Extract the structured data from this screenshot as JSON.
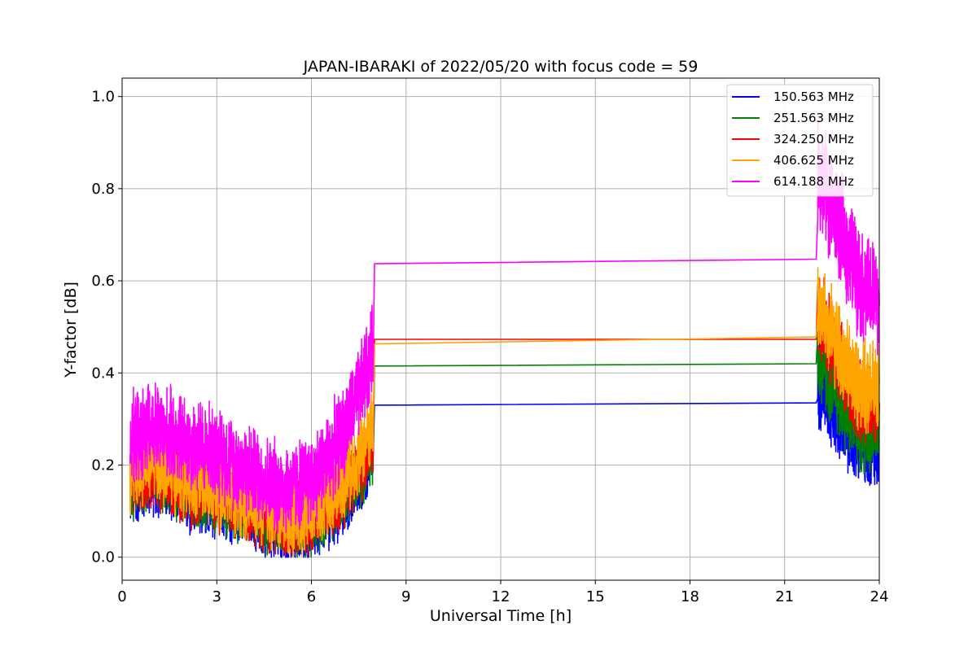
{
  "chart_data": {
    "type": "line",
    "title": "JAPAN-IBARAKI of 2022/05/20 with focus code = 59",
    "xlabel": "Universal Time [h]",
    "ylabel": "Y-factor [dB]",
    "xlim": [
      0,
      24
    ],
    "ylim": [
      -0.05,
      1.04
    ],
    "xticks": [
      "0",
      "3",
      "6",
      "9",
      "12",
      "15",
      "18",
      "21",
      "24"
    ],
    "yticks": [
      "0.0",
      "0.2",
      "0.4",
      "0.6",
      "0.8",
      "1.0"
    ],
    "grid": true,
    "legend_position": "top-right",
    "series": [
      {
        "name": "150.563 MHz",
        "color": "#0000ff",
        "x": [
          0.25,
          1.0,
          2.0,
          3.0,
          4.0,
          4.7,
          5.3,
          6.0,
          6.5,
          7.0,
          7.5,
          7.95,
          8.0,
          22.0,
          22.05,
          22.5,
          23.0,
          23.5,
          24.0
        ],
        "y": [
          0.14,
          0.17,
          0.13,
          0.12,
          0.09,
          0.07,
          0.06,
          0.07,
          0.09,
          0.12,
          0.16,
          0.21,
          0.33,
          0.335,
          0.38,
          0.33,
          0.27,
          0.24,
          0.25
        ]
      },
      {
        "name": "251.563 MHz",
        "color": "#008000",
        "x": [
          0.25,
          1.0,
          2.0,
          3.0,
          4.0,
          4.7,
          5.3,
          6.0,
          6.5,
          7.0,
          7.5,
          7.95,
          8.0,
          22.0,
          22.05,
          22.5,
          23.0,
          23.5,
          24.0
        ],
        "y": [
          0.15,
          0.18,
          0.14,
          0.13,
          0.1,
          0.08,
          0.07,
          0.08,
          0.1,
          0.13,
          0.17,
          0.23,
          0.415,
          0.42,
          0.42,
          0.37,
          0.31,
          0.27,
          0.28
        ]
      },
      {
        "name": "324.250 MHz",
        "color": "#ff0000",
        "x": [
          0.25,
          1.0,
          2.0,
          3.0,
          4.0,
          4.7,
          5.3,
          6.0,
          6.5,
          7.0,
          7.5,
          7.95,
          8.0,
          22.0,
          22.05,
          22.5,
          23.0,
          23.5,
          24.0
        ],
        "y": [
          0.16,
          0.19,
          0.15,
          0.14,
          0.11,
          0.09,
          0.08,
          0.09,
          0.11,
          0.14,
          0.19,
          0.25,
          0.473,
          0.473,
          0.53,
          0.46,
          0.38,
          0.33,
          0.34
        ]
      },
      {
        "name": "406.625 MHz",
        "color": "#ffa500",
        "x": [
          0.25,
          1.0,
          2.0,
          3.0,
          4.0,
          4.7,
          5.3,
          6.0,
          6.5,
          7.0,
          7.5,
          7.95,
          8.0,
          22.0,
          22.05,
          22.5,
          23.0,
          23.5,
          24.0
        ],
        "y": [
          0.18,
          0.21,
          0.17,
          0.15,
          0.12,
          0.1,
          0.09,
          0.1,
          0.13,
          0.17,
          0.22,
          0.29,
          0.463,
          0.478,
          0.55,
          0.48,
          0.41,
          0.36,
          0.37
        ]
      },
      {
        "name": "614.188 MHz",
        "color": "#ff00ff",
        "x": [
          0.25,
          1.0,
          2.0,
          3.0,
          4.0,
          4.7,
          5.3,
          6.0,
          6.5,
          7.0,
          7.5,
          7.95,
          8.0,
          22.0,
          22.05,
          22.5,
          23.0,
          23.5,
          24.0
        ],
        "y": [
          0.25,
          0.28,
          0.25,
          0.23,
          0.19,
          0.16,
          0.15,
          0.17,
          0.21,
          0.27,
          0.35,
          0.45,
          0.637,
          0.647,
          0.85,
          0.76,
          0.67,
          0.58,
          0.56
        ]
      }
    ]
  }
}
